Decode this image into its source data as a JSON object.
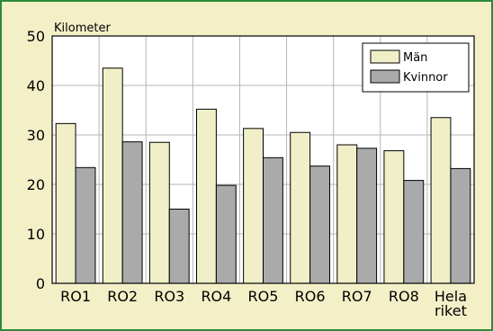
{
  "chart_data": {
    "type": "bar",
    "ylabel": "Kilometer",
    "ylim": [
      0,
      50
    ],
    "yticks": [
      0,
      10,
      20,
      30,
      40,
      50
    ],
    "grid": true,
    "legend_position": "top-right",
    "categories": [
      "RO1",
      "RO2",
      "RO3",
      "RO4",
      "RO5",
      "RO6",
      "RO7",
      "RO8",
      "Hela riket"
    ],
    "category_label_lines": [
      [
        "RO1"
      ],
      [
        "RO2"
      ],
      [
        "RO3"
      ],
      [
        "RO4"
      ],
      [
        "RO5"
      ],
      [
        "RO6"
      ],
      [
        "RO7"
      ],
      [
        "RO8"
      ],
      [
        "Hela",
        "riket"
      ]
    ],
    "series": [
      {
        "name": "Män",
        "color": "#f1efc8",
        "values": [
          32.3,
          43.5,
          28.5,
          35.2,
          31.3,
          30.5,
          28.0,
          26.8,
          33.5
        ]
      },
      {
        "name": "Kvinnor",
        "color": "#aaaaaa",
        "values": [
          23.4,
          28.6,
          15.0,
          19.8,
          25.4,
          23.7,
          27.3,
          20.8,
          23.2
        ]
      }
    ],
    "plot_background": "#ffffff",
    "frame_color": "#2f8a3a"
  }
}
